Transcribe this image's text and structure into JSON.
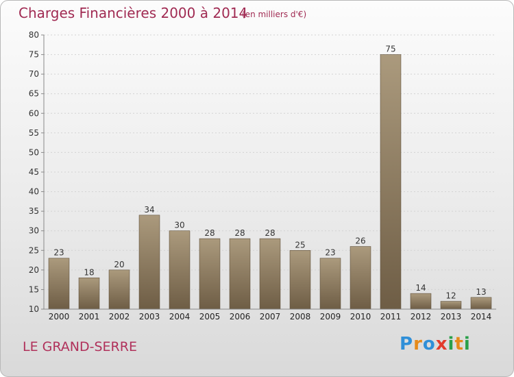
{
  "header": {
    "title": "Charges Financières 2000 à 2014",
    "subtitle": "(en milliers d'€)"
  },
  "footer": {
    "commune": "LE GRAND-SERRE",
    "logo_text": "Proxiti"
  },
  "colors": {
    "title": "#a02a52",
    "bar_top": "#ab9a7d",
    "bar_bottom": "#6e5d45"
  },
  "chart_data": {
    "type": "bar",
    "title": "Charges Financières 2000 à 2014",
    "subtitle": "(en milliers d'€)",
    "xlabel": "",
    "ylabel": "",
    "categories": [
      "2000",
      "2001",
      "2002",
      "2003",
      "2004",
      "2005",
      "2006",
      "2007",
      "2008",
      "2009",
      "2010",
      "2011",
      "2012",
      "2013",
      "2014"
    ],
    "values": [
      23,
      18,
      20,
      34,
      30,
      28,
      28,
      28,
      25,
      23,
      26,
      75,
      14,
      12,
      13
    ],
    "ylim": [
      10,
      80
    ],
    "yticks": [
      10,
      15,
      20,
      25,
      30,
      35,
      40,
      45,
      50,
      55,
      60,
      65,
      70,
      75,
      80
    ],
    "grid": true,
    "data_labels": true
  }
}
